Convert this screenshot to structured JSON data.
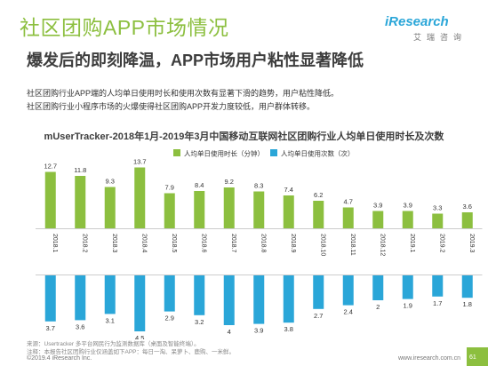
{
  "page": {
    "title": "社区团购APP市场情况",
    "subtitle": "爆发后的即刻降温，APP市场用户粘性显著降低",
    "intro": [
      "社区团购行业APP端的人均单日使用时长和使用次数有显著下滑的趋势，用户粘性降低。",
      "社区团购行业小程序市场的火爆使得社区团购APP开发力度较低，用户群体转移。"
    ],
    "logo_text": "iResearch",
    "logo_sub": "艾瑞咨询",
    "footnotes": [
      "来源：Usertracker 多平台网民行为监测数据库（桌面及智能终端）。",
      "注释：本报告社区团购行业仅涵盖如下APP：每日一淘、呆萝卜、鹿购、一米鲜。"
    ],
    "copyright": "©2019.4 iResearch Inc.",
    "website": "www.iresearch.com.cn",
    "page_number": "61",
    "colors": {
      "accent_green": "#8cbf3f",
      "bar_blue": "#2aa6d8",
      "brand_blue": "#2aa6d8"
    }
  },
  "chart_data": {
    "type": "bar",
    "title": "mUserTracker-2018年1月-2019年3月中国移动互联网社区团购行业人均单日使用时长及次数",
    "categories": [
      "2018.1",
      "2018.2",
      "2018.3",
      "2018.4",
      "2018.5",
      "2018.6",
      "2018.7",
      "2018.8",
      "2018.9",
      "2018.10",
      "2018.11",
      "2018.12",
      "2019.1",
      "2019.2",
      "2019.3"
    ],
    "series": [
      {
        "name": "人均单日使用时长（分钟）",
        "color": "#8cbf3f",
        "direction": "up",
        "values": [
          12.7,
          11.8,
          9.3,
          13.7,
          7.9,
          8.4,
          9.2,
          8.3,
          7.4,
          6.2,
          4.7,
          3.9,
          3.9,
          3.3,
          3.6
        ]
      },
      {
        "name": "人均单日使用次数（次）",
        "color": "#2aa6d8",
        "direction": "down",
        "values": [
          3.7,
          3.6,
          3.1,
          4.5,
          2.9,
          3.2,
          4.0,
          3.9,
          3.8,
          2.7,
          2.4,
          2.0,
          1.9,
          1.7,
          1.8
        ]
      }
    ],
    "legend_position": "top",
    "grid": false
  }
}
